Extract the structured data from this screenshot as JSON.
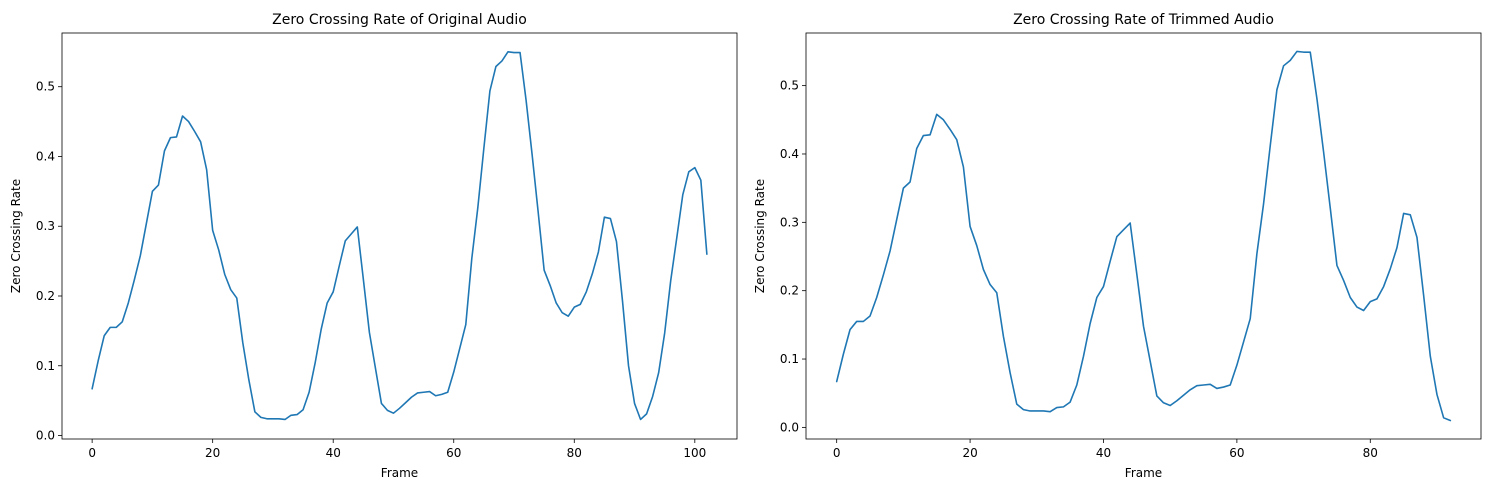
{
  "chart_data": [
    {
      "type": "line",
      "title": "Zero Crossing Rate of Original Audio",
      "xlabel": "Frame",
      "ylabel": "Zero Crossing Rate",
      "xlim": [
        -5,
        107
      ],
      "ylim": [
        -0.005,
        0.577
      ],
      "xticks": [
        0,
        20,
        40,
        60,
        80,
        100
      ],
      "yticks": [
        0.0,
        0.1,
        0.2,
        0.3,
        0.4,
        0.5
      ],
      "grid": false,
      "color": "#1f77b4",
      "series": [
        {
          "values": [
            0.067,
            0.107,
            0.143,
            0.155,
            0.155,
            0.163,
            0.19,
            0.223,
            0.258,
            0.304,
            0.35,
            0.359,
            0.408,
            0.427,
            0.428,
            0.458,
            0.45,
            0.436,
            0.421,
            0.381,
            0.294,
            0.266,
            0.231,
            0.209,
            0.197,
            0.133,
            0.08,
            0.034,
            0.026,
            0.024,
            0.024,
            0.024,
            0.023,
            0.029,
            0.03,
            0.037,
            0.062,
            0.104,
            0.152,
            0.19,
            0.206,
            0.243,
            0.279,
            0.289,
            0.299,
            0.224,
            0.148,
            0.097,
            0.046,
            0.036,
            0.032,
            0.039,
            0.047,
            0.055,
            0.061,
            0.062,
            0.063,
            0.057,
            0.059,
            0.062,
            0.091,
            0.125,
            0.159,
            0.254,
            0.327,
            0.412,
            0.494,
            0.529,
            0.537,
            0.55,
            0.549,
            0.549,
            0.481,
            0.403,
            0.321,
            0.237,
            0.215,
            0.19,
            0.176,
            0.171,
            0.184,
            0.188,
            0.206,
            0.232,
            0.263,
            0.313,
            0.311,
            0.278,
            0.193,
            0.1,
            0.046,
            0.023,
            0.031,
            0.056,
            0.09,
            0.147,
            0.222,
            0.283,
            0.345,
            0.378,
            0.384,
            0.366,
            0.26
          ]
        }
      ]
    },
    {
      "type": "line",
      "title": "Zero Crossing Rate of Trimmed Audio",
      "xlabel": "Frame",
      "ylabel": "Zero Crossing Rate",
      "xlim": [
        -4.6,
        96.6
      ],
      "ylim": [
        -0.017,
        0.577
      ],
      "xticks": [
        0,
        20,
        40,
        60,
        80
      ],
      "yticks": [
        0.0,
        0.1,
        0.2,
        0.3,
        0.4,
        0.5
      ],
      "grid": false,
      "color": "#1f77b4",
      "series": [
        {
          "values": [
            0.067,
            0.107,
            0.143,
            0.155,
            0.155,
            0.163,
            0.19,
            0.223,
            0.258,
            0.304,
            0.35,
            0.359,
            0.408,
            0.427,
            0.428,
            0.458,
            0.45,
            0.436,
            0.421,
            0.381,
            0.294,
            0.266,
            0.231,
            0.209,
            0.197,
            0.133,
            0.08,
            0.034,
            0.026,
            0.024,
            0.024,
            0.024,
            0.023,
            0.029,
            0.03,
            0.037,
            0.062,
            0.104,
            0.152,
            0.19,
            0.206,
            0.243,
            0.279,
            0.289,
            0.299,
            0.224,
            0.148,
            0.097,
            0.046,
            0.036,
            0.032,
            0.039,
            0.047,
            0.055,
            0.061,
            0.062,
            0.063,
            0.057,
            0.059,
            0.062,
            0.091,
            0.125,
            0.159,
            0.254,
            0.327,
            0.412,
            0.494,
            0.529,
            0.537,
            0.55,
            0.549,
            0.549,
            0.481,
            0.403,
            0.321,
            0.237,
            0.215,
            0.19,
            0.176,
            0.171,
            0.184,
            0.188,
            0.206,
            0.232,
            0.263,
            0.313,
            0.311,
            0.278,
            0.193,
            0.104,
            0.048,
            0.014,
            0.01
          ]
        }
      ]
    }
  ]
}
